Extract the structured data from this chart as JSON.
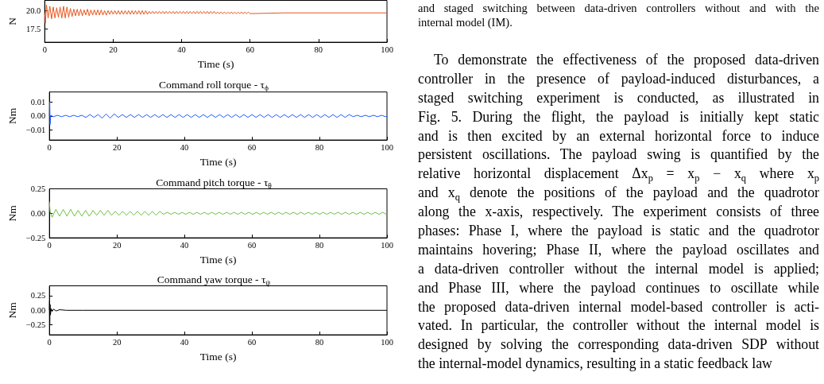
{
  "chart_data": [
    {
      "type": "line",
      "ylabel": "N",
      "xlabel": "Time (s)",
      "color": "#e8561f",
      "x": [
        0,
        0.2,
        0.5,
        1,
        1.5,
        2,
        2.5,
        3,
        3.5,
        4,
        4.5,
        5,
        5.5,
        6,
        6.5,
        7,
        7.5,
        8,
        8.5,
        9,
        9.5,
        10,
        10.5,
        11,
        11.5,
        12,
        12.5,
        13,
        13.5,
        14,
        14.5,
        15,
        15.5,
        16,
        16.5,
        17,
        17.5,
        18,
        18.5,
        19,
        19.5,
        20,
        20.5,
        21,
        21.5,
        22,
        22.5,
        23,
        23.5,
        24,
        24.5,
        25,
        25.5,
        26,
        26.5,
        27,
        27.5,
        28,
        28.5,
        29,
        29.5,
        30,
        30.5,
        31,
        31.5,
        32,
        32.5,
        33,
        33.5,
        34,
        34.5,
        35,
        35.5,
        36,
        36.5,
        37,
        37.5,
        38,
        38.5,
        39,
        39.5,
        40,
        40.5,
        41,
        41.5,
        42,
        42.5,
        43,
        43.5,
        44,
        44.5,
        45,
        45.5,
        46,
        46.5,
        47,
        47.5,
        48,
        48.5,
        49,
        49.5,
        50,
        50.5,
        51,
        51.5,
        52,
        52.5,
        53,
        53.5,
        54,
        54.5,
        55,
        55.5,
        56,
        56.5,
        57,
        57.5,
        58,
        58.5,
        59,
        59.5,
        60,
        70,
        80,
        90,
        100
      ],
      "values": [
        19.7,
        18.3,
        20.8,
        19.0,
        20.6,
        18.9,
        20.5,
        19.0,
        20.4,
        19.1,
        20.5,
        19.0,
        20.6,
        19.0,
        20.5,
        19.1,
        20.3,
        19.2,
        20.2,
        19.3,
        20.2,
        19.3,
        20.2,
        19.3,
        20.1,
        19.4,
        20.2,
        19.3,
        20.1,
        19.4,
        20.1,
        19.4,
        20.1,
        19.4,
        20.1,
        19.4,
        20.0,
        19.4,
        20.0,
        19.5,
        20.0,
        19.5,
        20.0,
        19.5,
        20.0,
        19.5,
        20.0,
        19.5,
        20.0,
        19.5,
        20.0,
        19.5,
        20.0,
        19.5,
        20.0,
        19.5,
        20.0,
        19.5,
        20.0,
        19.5,
        20.0,
        19.5,
        19.9,
        19.6,
        19.9,
        19.6,
        19.9,
        19.6,
        19.9,
        19.6,
        19.9,
        19.6,
        19.9,
        19.6,
        19.9,
        19.6,
        19.9,
        19.6,
        19.9,
        19.6,
        19.9,
        19.6,
        19.9,
        19.6,
        19.9,
        19.6,
        19.9,
        19.6,
        19.9,
        19.6,
        19.9,
        19.6,
        19.9,
        19.6,
        19.9,
        19.6,
        19.9,
        19.6,
        19.9,
        19.6,
        19.9,
        19.6,
        19.8,
        19.6,
        19.8,
        19.6,
        19.8,
        19.6,
        19.8,
        19.6,
        19.8,
        19.6,
        19.8,
        19.6,
        19.8,
        19.6,
        19.8,
        19.6,
        19.8,
        19.6,
        19.8,
        19.6,
        19.7,
        19.7,
        19.7,
        19.7
      ],
      "xlim": [
        0,
        100
      ],
      "xticks": [
        0,
        20,
        40,
        60,
        80,
        100
      ],
      "ylim": [
        15.7,
        21.4
      ],
      "yticks": [
        17.5,
        {
          "value": 20,
          "label": "20.0"
        }
      ]
    },
    {
      "type": "line",
      "title": "Command roll torque - τ$_{ϕ}$",
      "ylabel": "Nm",
      "xlabel": "Time (s)",
      "color": "#1f5cff",
      "x": [
        0,
        0.1,
        0.2,
        0.4,
        1.2,
        2.4,
        3.6,
        4.8,
        6,
        7.2,
        8.4,
        9.6,
        10.8,
        12,
        13.2,
        14.4,
        15.6,
        16.8,
        18,
        19.2,
        20.4,
        21.6,
        22.8,
        24,
        25.2,
        26.4,
        27.6,
        28.8,
        30,
        31.2,
        32.4,
        33.6,
        34.8,
        36,
        37.2,
        38.4,
        39.6,
        40.8,
        42,
        43.2,
        44.4,
        45.6,
        46.8,
        48,
        49.2,
        50.4,
        51.6,
        52.8,
        54,
        55.2,
        56.4,
        57.6,
        58.8,
        60,
        61.2,
        62.4,
        63.6,
        64.8,
        66,
        67.2,
        68.4,
        69.6,
        70.8,
        72,
        73.2,
        74.4,
        75.6,
        76.8,
        78,
        79.2,
        80.4,
        81.6,
        82.8,
        84,
        85.2,
        86.4,
        87.6,
        88.8,
        90,
        91.2,
        92.4,
        93.6,
        94.8,
        96,
        97.2,
        98.4,
        99.6,
        100
      ],
      "values": [
        0,
        0.01,
        -0.006,
        0.0005,
        -0.0005,
        0.0005,
        -0.0005,
        0.0005,
        -0.0005,
        0.0005,
        -0.0005,
        0.0005,
        -0.001,
        0.001,
        -0.001,
        0.001,
        -0.0015,
        0.0015,
        -0.0015,
        0.0015,
        -0.001,
        0.001,
        -0.001,
        0.001,
        -0.001,
        0.001,
        -0.001,
        0.001,
        -0.001,
        0.001,
        -0.001,
        0.001,
        -0.001,
        0.001,
        -0.001,
        0.001,
        -0.001,
        0.001,
        -0.001,
        0.001,
        -0.001,
        0.001,
        -0.001,
        0.001,
        -0.001,
        0.001,
        -0.001,
        0.001,
        -0.001,
        0.001,
        -0.001,
        0.001,
        -0.001,
        0.001,
        -0.001,
        0.001,
        -0.001,
        0.001,
        -0.001,
        0.001,
        -0.001,
        0.001,
        -0.001,
        0.001,
        -0.001,
        0.001,
        -0.001,
        0.001,
        -0.001,
        0.001,
        -0.001,
        0.001,
        -0.001,
        0.001,
        -0.001,
        0.001,
        -0.001,
        0.001,
        -0.0005,
        0.0005,
        -0.0005,
        0.0005,
        -0.0005,
        0.0005,
        -0.0005,
        0.0005,
        -0.0005,
        0
      ],
      "xlim": [
        0,
        100
      ],
      "xticks": [
        0,
        20,
        40,
        60,
        80,
        100
      ],
      "ylim": [
        -0.017,
        0.017
      ],
      "yticks": [
        {
          "value": -0.01,
          "label": "−0.01"
        },
        {
          "value": 0,
          "label": "0.00"
        },
        0.01
      ]
    },
    {
      "type": "line",
      "title": "Command pitch torque - τ$_{θ}$",
      "ylabel": "Nm",
      "xlabel": "Time (s)",
      "color": "#6cbf45",
      "x": [
        0,
        0.2,
        0.8,
        1.9,
        3,
        4.1,
        5.2,
        6.3,
        7.4,
        8.5,
        9.6,
        10.7,
        11.8,
        12.9,
        14,
        15.1,
        16.2,
        17.3,
        18.4,
        19.5,
        20.6,
        21.7,
        22.8,
        23.9,
        25,
        26.1,
        27.2,
        28.3,
        29.4,
        30.5,
        31.6,
        32.7,
        33.8,
        34.9,
        36,
        37.1,
        38.2,
        39.3,
        40.4,
        41.5,
        42.6,
        43.7,
        44.8,
        45.9,
        47,
        48.1,
        49.2,
        50.3,
        51.4,
        52.5,
        53.6,
        54.7,
        55.8,
        56.9,
        58,
        59.1,
        60.2,
        61.3,
        62.4,
        63.5,
        64.6,
        65.7,
        66.8,
        67.9,
        69,
        70.1,
        71.2,
        72.3,
        73.4,
        74.5,
        75.6,
        76.7,
        77.8,
        78.9,
        80,
        81.1,
        82.2,
        83.3,
        84.4,
        85.5,
        86.6,
        87.7,
        88.8,
        89.9,
        91,
        92.1,
        93.2,
        94.3,
        95.4,
        96.5,
        97.6,
        98.7,
        99.8,
        100
      ],
      "values": [
        0.12,
        0.02,
        -0.04,
        0.04,
        -0.03,
        0.04,
        -0.03,
        0.04,
        -0.03,
        0.03,
        -0.03,
        0.03,
        -0.03,
        0.03,
        -0.02,
        0.03,
        -0.02,
        0.03,
        -0.02,
        0.02,
        -0.02,
        0.02,
        -0.02,
        0.02,
        -0.02,
        0.02,
        -0.02,
        0.02,
        -0.02,
        0.02,
        -0.02,
        0.02,
        -0.01,
        0.01,
        -0.01,
        0.01,
        -0.01,
        0.01,
        -0.01,
        0.01,
        -0.01,
        0.01,
        -0.01,
        0.01,
        -0.01,
        0.01,
        -0.01,
        0.01,
        -0.01,
        0.01,
        -0.01,
        0.01,
        -0.01,
        0.01,
        -0.01,
        0.01,
        -0.01,
        0.01,
        -0.01,
        0.01,
        -0.01,
        0.01,
        -0.01,
        0.01,
        -0.01,
        0.01,
        -0.01,
        0.01,
        -0.01,
        0.01,
        -0.01,
        0.01,
        -0.01,
        0.01,
        -0.01,
        0.01,
        -0.01,
        0.01,
        -0.01,
        0.01,
        -0.01,
        0.01,
        -0.01,
        0.01,
        -0.01,
        0.01,
        -0.01,
        0.01,
        -0.01,
        0.01,
        -0.01,
        0.01,
        -0.01,
        0
      ],
      "xlim": [
        0,
        100
      ],
      "xticks": [
        0,
        20,
        40,
        60,
        80,
        100
      ],
      "ylim": [
        -0.25,
        0.25
      ],
      "yticks": [
        {
          "value": -0.25,
          "label": "−0.25"
        },
        {
          "value": 0,
          "label": "0.00"
        },
        0.25
      ]
    },
    {
      "type": "line",
      "title": "Command yaw torque - τ$_{ψ}$",
      "ylabel": "Nm",
      "xlabel": "Time (s)",
      "color": "#000000",
      "x": [
        0,
        0.05,
        0.1,
        0.2,
        0.3,
        0.5,
        0.8,
        1.2,
        2,
        3,
        5,
        10,
        100
      ],
      "values": [
        0,
        0.16,
        -0.25,
        0.1,
        -0.08,
        0.03,
        -0.02,
        0.02,
        -0.01,
        0.01,
        0,
        0,
        0
      ],
      "xlim": [
        0,
        100
      ],
      "xticks": [
        0,
        20,
        40,
        60,
        80,
        100
      ],
      "ylim": [
        -0.42,
        0.42
      ],
      "yticks": [
        {
          "value": -0.25,
          "label": "−0.25"
        },
        {
          "value": 0,
          "label": "0.00"
        },
        0.25
      ]
    },
    {
      "type": "other",
      "annotations": [
        "and staged switching between data-driven controllers without and with the\ninternal model (IM).",
        "To demonstrate the effectiveness of the proposed data-driven\ncontroller in the presence of payload-induced disturbances, a\nstaged switching experiment is conducted, as illustrated in\nFig. 5. During the flight, the payload is initially kept static\nand is then excited by an external horizontal force to induce\npersistent oscillations. The payload swing is quantified by the\nrelative horizontal displacement Δx$_{p}$ = x$_{p}$ − x$_{q}$ where x$_{p}$\nand x$_{q}$ denote the positions of the payload and the quadrotor\nalong the x-axis, respectively. The experiment consists of three\nphases: Phase I, where the payload is static and the quadrotor\nmaintains hovering; Phase II, where the payload oscillates and\na data-driven controller without the internal model is applied;\nand Phase III, where the payload continues to oscillate while\nthe proposed data-driven internal model-based controller is acti-\nvated. In particular, the controller without the internal model is\ndesigned by solving the corresponding data-driven SDP without\nthe internal-model dynamics, resulting in a static feedback law"
      ]
    }
  ]
}
